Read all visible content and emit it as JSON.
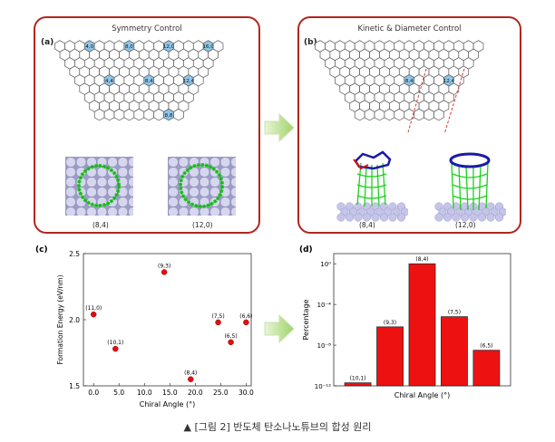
{
  "panel_a": {
    "label": "(a)",
    "title": "Symmetry Control",
    "hex_labels": [
      "4,0",
      "8,0",
      "12,0",
      "16,0",
      "4,4",
      "8,4",
      "12,4",
      "8,8"
    ],
    "captions": [
      "(8,4)",
      "(12,0)"
    ]
  },
  "panel_b": {
    "label": "(b)",
    "title": "Kinetic & Diameter Control",
    "hex_labels": [
      "8,4",
      "12,4"
    ],
    "captions": [
      "(8,4)",
      "(12,0)"
    ]
  },
  "caption": "▲ [그림 2] 반도체 탄소나노튜브의 합성 원리",
  "colors": {
    "frame": "#b3261e",
    "bar": "#ee1111",
    "point": "#e01010",
    "hex_fill": "#8fc6e8",
    "tube": "#2fd62f",
    "substrate": "#b7b7dc"
  },
  "chart_data": [
    {
      "label": "(c)",
      "type": "scatter",
      "xlabel": "Chiral Angle (°)",
      "ylabel": "Formation Energy (eV/nm)",
      "xlim": [
        -2,
        31
      ],
      "ylim": [
        1.5,
        2.5
      ],
      "xticks": [
        "0.0",
        "5.0",
        "10.0",
        "15.0",
        "20.0",
        "25.0",
        "30.0"
      ],
      "yticks": [
        "1.5",
        "2.0",
        "2.5"
      ],
      "points": [
        {
          "label": "(11,0)",
          "x": 0.0,
          "y": 2.04
        },
        {
          "label": "(10,1)",
          "x": 4.3,
          "y": 1.78
        },
        {
          "label": "(9,3)",
          "x": 13.9,
          "y": 2.36
        },
        {
          "label": "(8,4)",
          "x": 19.1,
          "y": 1.55
        },
        {
          "label": "(7,5)",
          "x": 24.5,
          "y": 1.98
        },
        {
          "label": "(6,5)",
          "x": 27.0,
          "y": 1.83
        },
        {
          "label": "(6,6)",
          "x": 30.0,
          "y": 1.98
        }
      ]
    },
    {
      "label": "(d)",
      "type": "bar",
      "xlabel": "Chiral Angle (°)",
      "ylabel": "Percentage",
      "yscale": "log",
      "ylim_exp": [
        -12,
        1
      ],
      "yticks": [
        "10⁰",
        "10⁻⁴",
        "10⁻⁸",
        "10⁻¹²"
      ],
      "categories": [
        "(10,1)",
        "(9,3)",
        "(8,4)",
        "(7,5)",
        "(6,5)"
      ],
      "log10_values": [
        -11.7,
        -6.2,
        0.0,
        -5.2,
        -8.5
      ]
    }
  ]
}
